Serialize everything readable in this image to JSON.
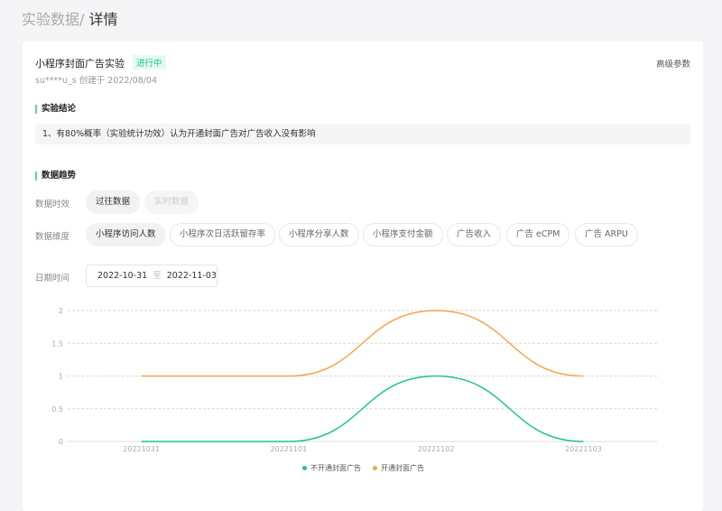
{
  "breadcrumb": {
    "parent": "实验数据/",
    "current": "详情"
  },
  "experiment": {
    "title": "小程序封面广告实验",
    "status": "进行中",
    "meta": "su****u_s 创建于 2022/08/04",
    "advanced": "高级参数"
  },
  "conclusion": {
    "heading": "实验结论",
    "text": "1、有80%概率（实验统计功效）认为开通封面广告对广告收入没有影响"
  },
  "trend": {
    "heading": "数据趋势",
    "timeliness_label": "数据时效",
    "timeliness": [
      "过往数据",
      "实时数据"
    ],
    "dimension_label": "数据维度",
    "dimensions": [
      "小程序访问人数",
      "小程序次日活跃留存率",
      "小程序分享人数",
      "小程序支付金额",
      "广告收入",
      "广告 eCPM",
      "广告 ARPU"
    ],
    "date_label": "日期时间",
    "date_from": "2022-10-31",
    "date_sep": "至",
    "date_to": "2022-11-03"
  },
  "chart_data": {
    "type": "line",
    "categories": [
      "20221031",
      "20221101",
      "20221102",
      "20221103"
    ],
    "ylim": [
      0,
      2
    ],
    "yticks": [
      "0",
      "0.5",
      "1",
      "1.5",
      "2"
    ],
    "grid": true,
    "legend": "bottom",
    "series": [
      {
        "name": "不开通封面广告",
        "color": "#1fc48a",
        "values": [
          0,
          0,
          1,
          0
        ]
      },
      {
        "name": "开通封面广告",
        "color": "#f7a54a",
        "values": [
          1,
          1,
          2,
          1
        ]
      }
    ]
  }
}
